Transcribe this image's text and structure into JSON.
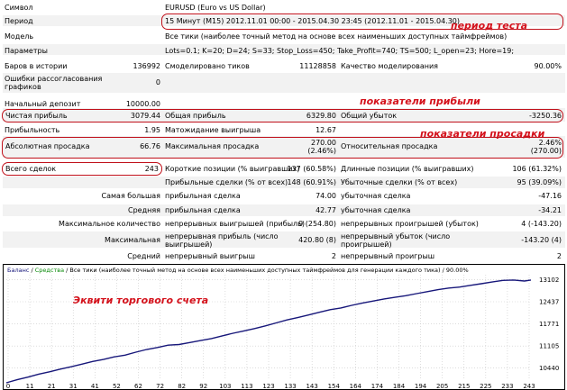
{
  "report": {
    "symbol": {
      "label": "Символ",
      "value": "EURUSD (Euro vs US Dollar)"
    },
    "period": {
      "label": "Период",
      "value": "15 Минут (M15) 2012.11.01 00:00 - 2015.04.30 23:45 (2012.11.01 - 2015.04.30)"
    },
    "model": {
      "label": "Модель",
      "value": "Все тики (наиболее точный метод на основе всех наименьших доступных таймфреймов)"
    },
    "params": {
      "label": "Параметры",
      "value": "Lots=0.1; K=20; D=24; S=33; Stop_Loss=450; Take_Profit=740; TS=500; L_open=23; Hore=19;"
    },
    "bars": {
      "label": "Баров в истории",
      "value": "136992"
    },
    "ticks": {
      "label": "Смоделировано тиков",
      "value": "11128858"
    },
    "quality": {
      "label": "Качество моделирования",
      "value": "90.00%"
    },
    "errors": {
      "label1": "Ошибки рассогласования",
      "label2": "графиков",
      "value": "0"
    },
    "deposit": {
      "label": "Начальный депозит",
      "value": "10000.00"
    },
    "net_profit": {
      "label": "Чистая прибыль",
      "value": "3079.44"
    },
    "gross_profit": {
      "label": "Общая прибыль",
      "value": "6329.80"
    },
    "gross_loss": {
      "label": "Общий убыток",
      "value": "-3250.36"
    },
    "profit_factor": {
      "label": "Прибыльность",
      "value": "1.95"
    },
    "expected_payoff": {
      "label": "Матожидание выигрыша",
      "value": "12.67"
    },
    "abs_dd": {
      "label": "Абсолютная просадка",
      "value": "66.76"
    },
    "max_dd": {
      "label": "Максимальная просадка",
      "value1": "270.00",
      "value2": "(2.46%)"
    },
    "rel_dd": {
      "label": "Относительная просадка",
      "value1": "2.46%",
      "value2": "(270.00)"
    },
    "total_trades": {
      "label": "Всего сделок",
      "value": "243"
    },
    "short_pos": {
      "label": "Короткие позиции (% выигравших)",
      "value": "137 (60.58%)"
    },
    "long_pos": {
      "label": "Длинные позиции (% выигравших)",
      "value": "106 (61.32%)"
    },
    "profit_trades": {
      "label": "Прибыльные сделки (% от всех)",
      "value": "148 (60.91%)"
    },
    "loss_trades": {
      "label": "Убыточные сделки (% от всех)",
      "value": "95 (39.09%)"
    },
    "largest": {
      "label": "Самая большая",
      "profit_label": "прибыльная сделка",
      "profit_value": "74.00",
      "loss_label": "убыточная сделка",
      "loss_value": "-47.16"
    },
    "average": {
      "label": "Средняя",
      "profit_label": "прибыльная сделка",
      "profit_value": "42.77",
      "loss_label": "убыточная сделка",
      "loss_value": "-34.21"
    },
    "max_count": {
      "label": "Максимальное количество",
      "win_label": "непрерывных выигрышей (прибыль)",
      "win_value": "9 (254.80)",
      "loss_label": "непрерывных проигрышей (убыток)",
      "loss_value": "4 (-143.20)"
    },
    "max_sum": {
      "label": "Максимальная",
      "win_label1": "непрерывная прибыль (число",
      "win_label2": "выигрышей)",
      "win_value": "420.80 (8)",
      "loss_label1": "непрерывный убыток (число",
      "loss_label2": "проигрышей)",
      "loss_value": "-143.20 (4)"
    },
    "avg_cons": {
      "label": "Средний",
      "win_label": "непрерывный выигрыш",
      "win_value": "2",
      "loss_label": "непрерывный проигрыш",
      "loss_value": "2"
    }
  },
  "annotations": {
    "test_period": "период теста",
    "profit": "показатели прибыли",
    "drawdown": "показатели просадки",
    "equity": "Эквити торгового счета"
  },
  "colors": {
    "annotation": "#d4121c",
    "line": "#17177a",
    "grid": "#c8c8c8"
  },
  "chart_data": {
    "type": "line",
    "title_balance": "Баланс",
    "title_sep1": " / ",
    "title_equity": "Средства",
    "title_rest": " / Все тики (наиболее точный метод на основе всех наименьших доступных таймфреймов для генерации каждого тика) / 90.00%",
    "x_ticks": [
      "0",
      "11",
      "21",
      "31",
      "41",
      "52",
      "62",
      "72",
      "82",
      "92",
      "103",
      "113",
      "123",
      "133",
      "143",
      "154",
      "164",
      "174",
      "184",
      "194",
      "205",
      "215",
      "225",
      "233",
      "243"
    ],
    "y_ticks": [
      "13102",
      "12437",
      "11771",
      "11105",
      "10440"
    ],
    "ylim": [
      10080,
      13250
    ],
    "xlim": [
      0,
      243
    ],
    "series": [
      {
        "name": "Баланс",
        "x": [
          0,
          5,
          10,
          15,
          20,
          25,
          30,
          35,
          40,
          45,
          50,
          55,
          60,
          65,
          70,
          75,
          80,
          85,
          90,
          95,
          100,
          105,
          110,
          115,
          120,
          125,
          130,
          135,
          140,
          145,
          150,
          155,
          160,
          165,
          170,
          175,
          180,
          185,
          190,
          195,
          200,
          205,
          210,
          215,
          220,
          225,
          230,
          235,
          240,
          243
        ],
        "values": [
          10000,
          10090,
          10170,
          10260,
          10330,
          10410,
          10480,
          10560,
          10640,
          10700,
          10780,
          10830,
          10920,
          11000,
          11060,
          11130,
          11150,
          11210,
          11270,
          11330,
          11410,
          11490,
          11560,
          11630,
          11710,
          11800,
          11890,
          11960,
          12040,
          12120,
          12200,
          12250,
          12330,
          12400,
          12460,
          12520,
          12570,
          12620,
          12680,
          12740,
          12800,
          12850,
          12880,
          12930,
          12980,
          13030,
          13080,
          13090,
          13060,
          13090
        ]
      }
    ]
  }
}
